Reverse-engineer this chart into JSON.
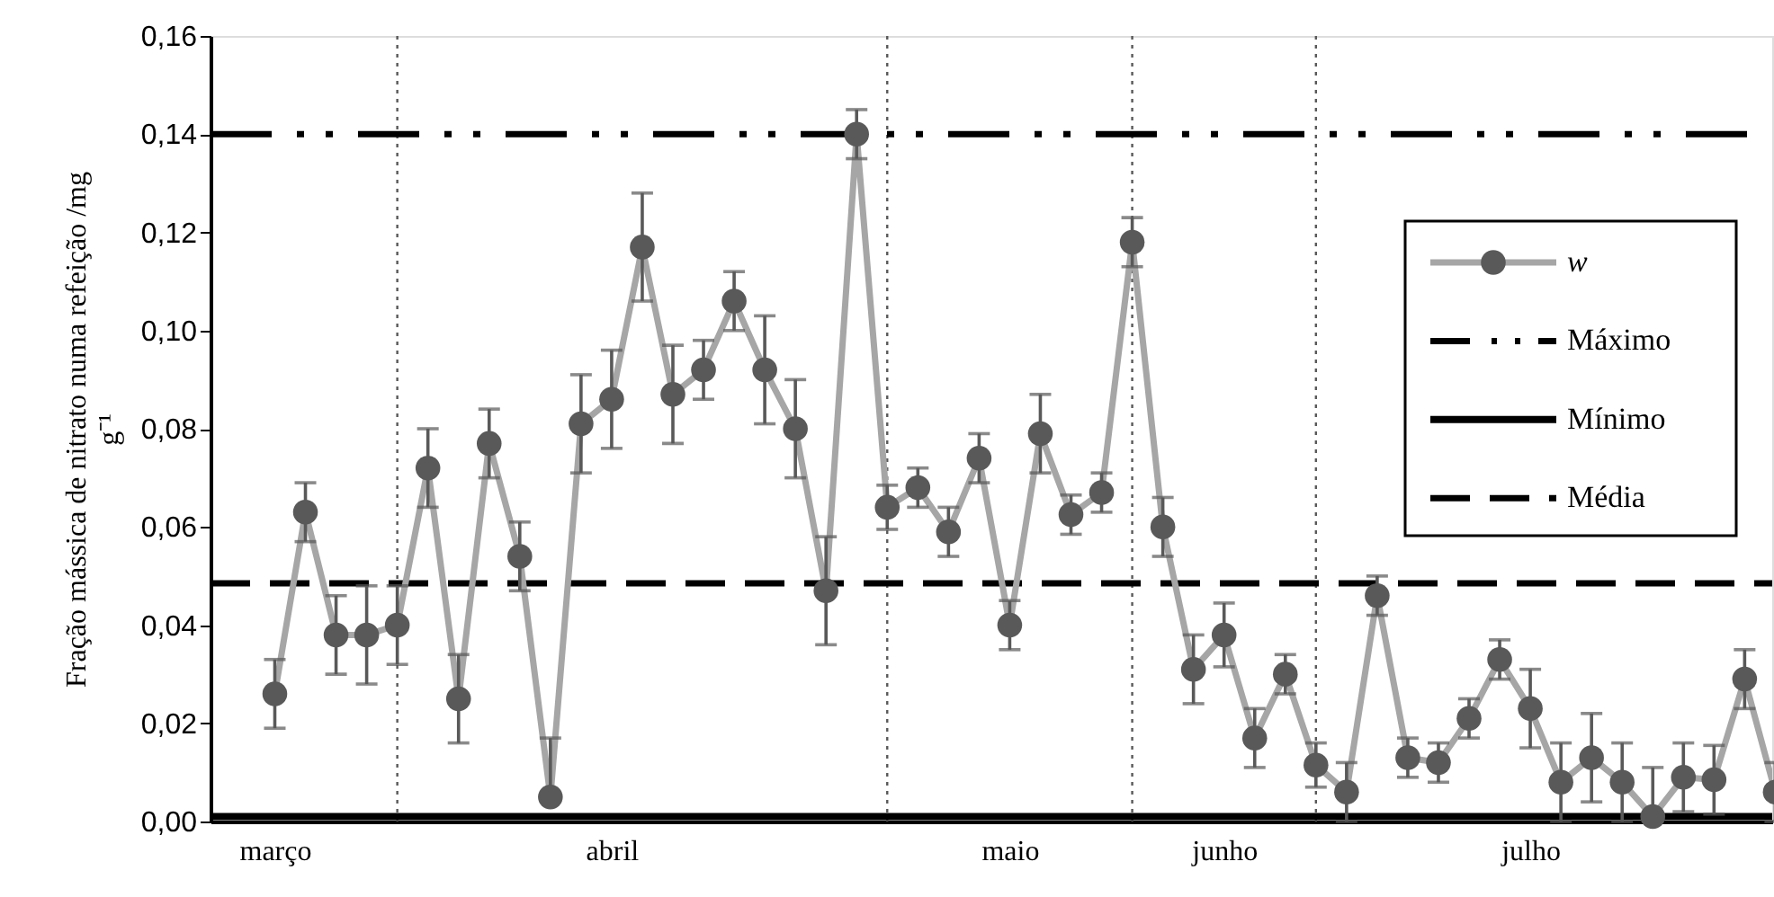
{
  "chart_data": {
    "type": "line",
    "ylabel": "Fração mássica de nitrato numa refeição /mg g⁻¹",
    "categories": [
      "março",
      null,
      null,
      null,
      null,
      null,
      null,
      null,
      null,
      null,
      null,
      "abril",
      null,
      null,
      null,
      null,
      null,
      null,
      null,
      null,
      null,
      null,
      null,
      null,
      "maio",
      null,
      null,
      null,
      null,
      null,
      null,
      "junho",
      null,
      null,
      null,
      null,
      null,
      null,
      null,
      null,
      null,
      "julho",
      null,
      null,
      null,
      null,
      null,
      null,
      null,
      null
    ],
    "ylim": [
      0,
      0.16
    ],
    "yticks": [
      {
        "value": 0,
        "label": "0,00"
      },
      {
        "value": 0.02,
        "label": "0,02"
      },
      {
        "value": 0.04,
        "label": "0,04"
      },
      {
        "value": 0.06,
        "label": "0,06"
      },
      {
        "value": 0.08,
        "label": "0,08"
      },
      {
        "value": 0.1,
        "label": "0,10"
      },
      {
        "value": 0.12,
        "label": "0,12"
      },
      {
        "value": 0.14,
        "label": "0,14"
      },
      {
        "value": 0.16,
        "label": "0,16"
      }
    ],
    "series": [
      {
        "name": "w",
        "color": "#a6a6a6",
        "values": [
          0.026,
          0.063,
          0.038,
          0.038,
          0.04,
          0.072,
          0.025,
          0.077,
          0.054,
          0.005,
          0.081,
          0.086,
          0.117,
          0.087,
          0.092,
          0.106,
          0.092,
          0.08,
          0.047,
          0.14,
          0.064,
          0.068,
          0.059,
          0.074,
          0.04,
          0.079,
          0.0625,
          0.067,
          0.118,
          0.06,
          0.031,
          0.038,
          0.017,
          0.03,
          0.0115,
          0.006,
          0.046,
          0.013,
          0.012,
          0.021,
          0.033,
          0.023,
          0.008,
          0.013,
          0.008,
          0.001,
          0.009,
          0.0085,
          0.029,
          0.006
        ],
        "errors": [
          0.007,
          0.006,
          0.008,
          0.01,
          0.008,
          0.008,
          0.009,
          0.007,
          0.007,
          [
            0.005,
            0.017
          ],
          0.01,
          0.01,
          0.011,
          0.01,
          0.006,
          0.006,
          0.011,
          0.01,
          0.011,
          0.005,
          0.0045,
          0.004,
          0.005,
          0.005,
          0.005,
          0.008,
          0.004,
          0.004,
          0.005,
          0.006,
          0.007,
          0.0065,
          0.006,
          0.004,
          0.0045,
          0.006,
          0.004,
          0.004,
          0.004,
          0.004,
          0.004,
          0.008,
          0.008,
          0.009,
          0.008,
          [
            0.001,
            0.011
          ],
          0.007,
          0.007,
          0.006,
          0.006
        ]
      }
    ],
    "ref_lines": [
      {
        "axis": "y",
        "value": 0.14,
        "label": "Máximo",
        "color": "#000000",
        "line_style": "dashdotdot"
      },
      {
        "axis": "y",
        "value": 0.001,
        "label": "Mínimo",
        "color": "#000000",
        "line_style": "solid"
      },
      {
        "axis": "y",
        "value": 0.0485,
        "label": "Média",
        "color": "#000000",
        "line_style": "dashed"
      }
    ],
    "marker": "circle",
    "line_style": "solid",
    "grid": "x",
    "legend": "top right"
  }
}
